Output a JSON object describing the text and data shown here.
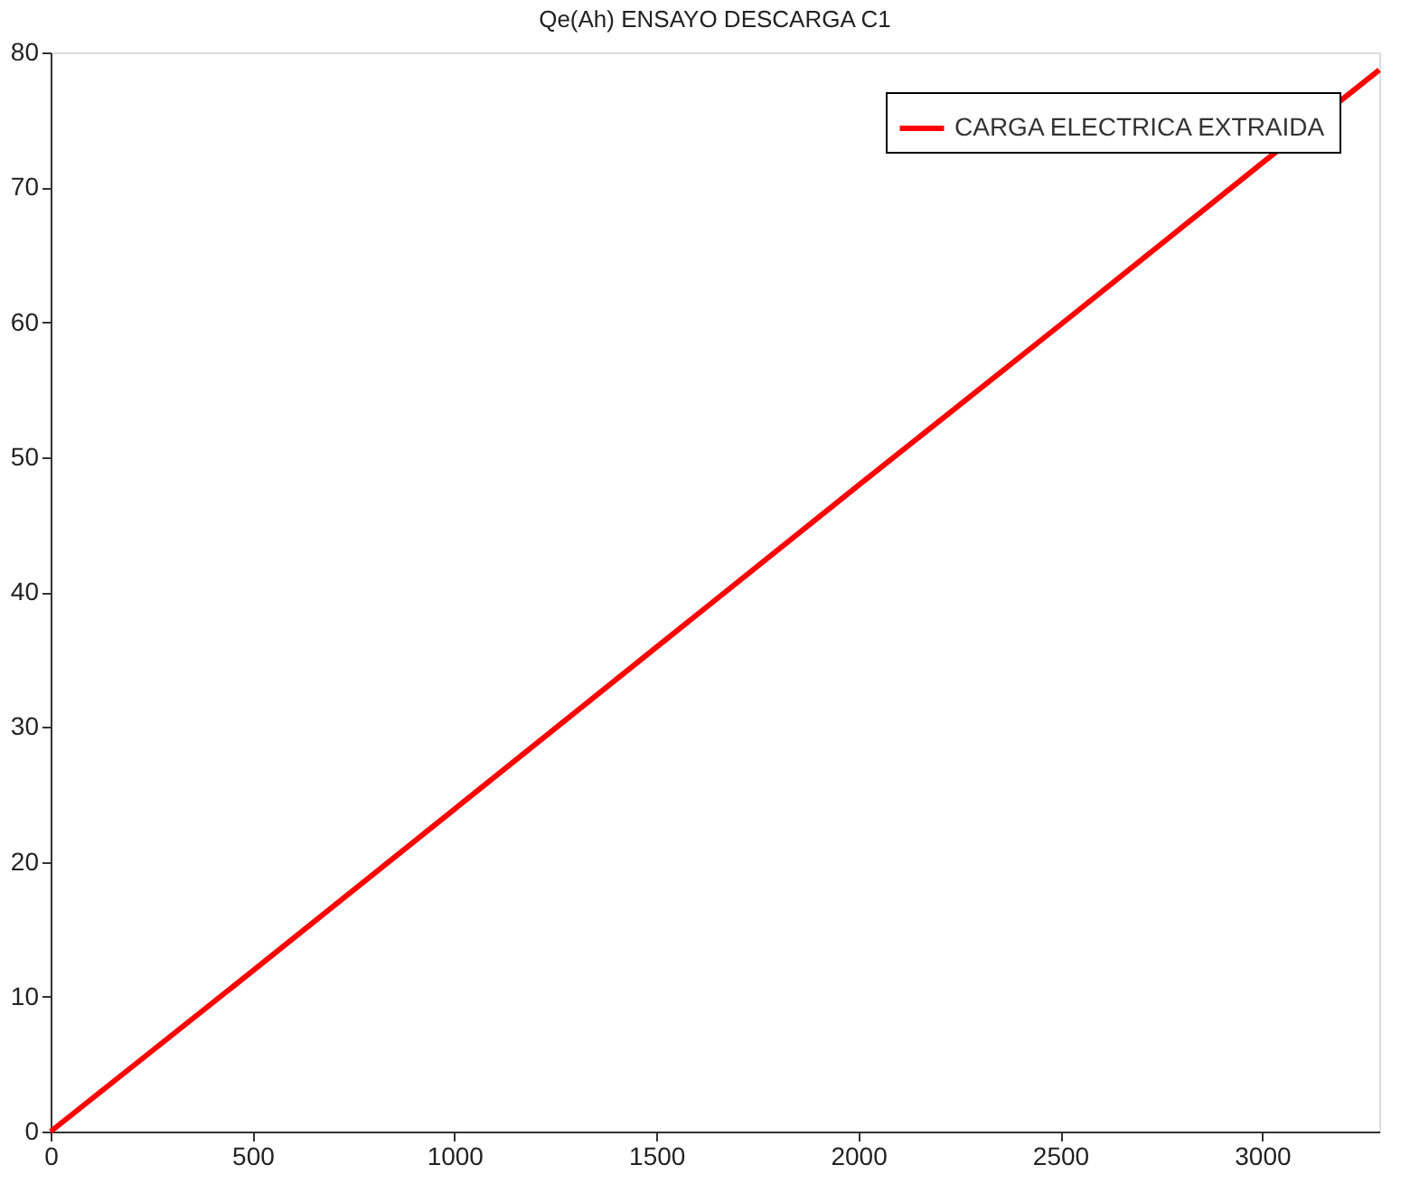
{
  "chart_data": {
    "type": "line",
    "title": "Qe(Ah) ENSAYO DESCARGA C1",
    "x": [
      0,
      500,
      1000,
      1500,
      2000,
      2500,
      3000,
      3290
    ],
    "series": [
      {
        "name": "CARGA ELECTRICA EXTRAIDA",
        "color": "#ff0000",
        "values": [
          0,
          11.9,
          23.9,
          35.9,
          47.9,
          59.8,
          71.8,
          78.7
        ]
      }
    ],
    "xlim": [
      0,
      3290
    ],
    "xticks": [
      0,
      500,
      1000,
      1500,
      2000,
      2500,
      3000
    ],
    "ylim": [
      0,
      80
    ],
    "yticks": [
      0,
      10,
      20,
      30,
      40,
      50,
      60,
      70,
      80
    ],
    "grid": false,
    "legend": "top right",
    "marker": "none",
    "line_style": "solid"
  }
}
